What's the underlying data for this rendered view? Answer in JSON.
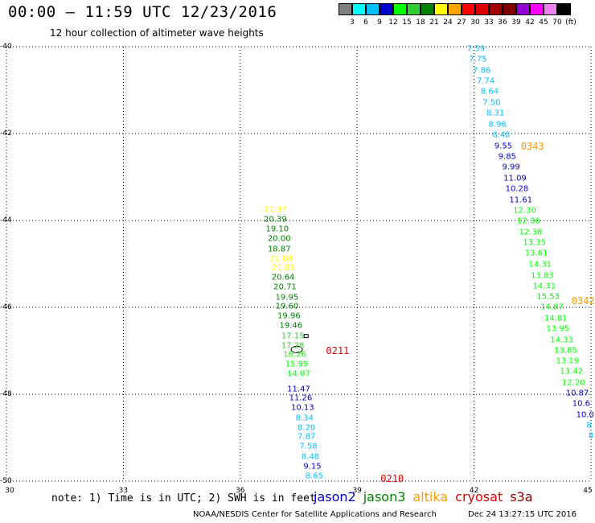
{
  "header": {
    "title": "00:00 – 11:59 UTC 12/23/2016",
    "subtitle": "12 hour collection of altimeter wave heights"
  },
  "legend": {
    "swatches": [
      "#808080",
      "#00ffff",
      "#00bfff",
      "#0000cd",
      "#00ff00",
      "#32cd32",
      "#008000",
      "#ffff00",
      "#ffa500",
      "#ff0000",
      "#dc0000",
      "#a00000",
      "#800000",
      "#9400d3",
      "#ff00ff",
      "#ee82ee",
      "#000000"
    ],
    "labels": [
      "3",
      "6",
      "9",
      "12",
      "15",
      "18",
      "21",
      "24",
      "27",
      "30",
      "33",
      "36",
      "39",
      "42",
      "45",
      "70",
      "(ft)"
    ]
  },
  "axes": {
    "y_labels": [
      "-40",
      "-42",
      "-44",
      "-46",
      "-48",
      "-50"
    ],
    "x_labels": [
      "30",
      "33",
      "36",
      "39",
      "42",
      "45"
    ]
  },
  "chart_data": {
    "type": "scatter",
    "x_range": [
      30,
      45
    ],
    "y_range": [
      -50,
      -40
    ],
    "grid": "dotted",
    "passes": [
      {
        "label": "0211",
        "satellite": "cryosat",
        "color": "#dd0000",
        "lon": 38.2,
        "lat": -47.0
      },
      {
        "label": "0210",
        "satellite": "cryosat",
        "color": "#dd0000",
        "lon": 39.6,
        "lat": -49.95
      },
      {
        "label": "0343",
        "satellite": "altika",
        "color": "#ff9900",
        "lon": 43.2,
        "lat": -42.3
      },
      {
        "label": "0342",
        "satellite": "altika",
        "color": "#ff9900",
        "lon": 44.5,
        "lat": -45.85
      }
    ],
    "tracks": [
      {
        "name": "track-west",
        "points": [
          {
            "lon": 36.9,
            "lat": -43.76,
            "v": "21.37",
            "c": "#ffff00"
          },
          {
            "lon": 36.9,
            "lat": -43.99,
            "v": "20.39",
            "c": "#008000"
          },
          {
            "lon": 36.95,
            "lat": -44.21,
            "v": "19.10",
            "c": "#008000"
          },
          {
            "lon": 37.0,
            "lat": -44.43,
            "v": "20.00",
            "c": "#008000"
          },
          {
            "lon": 37.0,
            "lat": -44.66,
            "v": "18.87",
            "c": "#008000"
          },
          {
            "lon": 37.05,
            "lat": -44.88,
            "v": "21.88",
            "c": "#ffff00"
          },
          {
            "lon": 37.1,
            "lat": -45.1,
            "v": "21.85",
            "c": "#ffff00"
          },
          {
            "lon": 37.1,
            "lat": -45.32,
            "v": "20.64",
            "c": "#008000"
          },
          {
            "lon": 37.15,
            "lat": -45.54,
            "v": "20.71",
            "c": "#008000"
          },
          {
            "lon": 37.2,
            "lat": -45.77,
            "v": "19.95",
            "c": "#008000"
          },
          {
            "lon": 37.2,
            "lat": -45.99,
            "v": "19.60",
            "c": "#008000"
          },
          {
            "lon": 37.25,
            "lat": -46.21,
            "v": "19.96",
            "c": "#008000"
          },
          {
            "lon": 37.3,
            "lat": -46.43,
            "v": "19.46",
            "c": "#008000"
          },
          {
            "lon": 37.35,
            "lat": -46.66,
            "v": "17.15",
            "c": "#32cd32"
          },
          {
            "lon": 37.35,
            "lat": -46.88,
            "v": "17.28",
            "c": "#32cd32"
          },
          {
            "lon": 37.4,
            "lat": -47.1,
            "v": "16.26",
            "c": "#00ff00"
          },
          {
            "lon": 37.45,
            "lat": -47.32,
            "v": "15.99",
            "c": "#00ff00"
          },
          {
            "lon": 37.5,
            "lat": -47.54,
            "v": "14.07",
            "c": "#00ff00"
          },
          {
            "lon": 37.5,
            "lat": -47.88,
            "v": "11.47",
            "c": "#0000cd"
          },
          {
            "lon": 37.55,
            "lat": -48.1,
            "v": "11.26",
            "c": "#0000cd"
          },
          {
            "lon": 37.6,
            "lat": -48.32,
            "v": "10.13",
            "c": "#0000cd"
          },
          {
            "lon": 37.65,
            "lat": -48.55,
            "v": "8.34",
            "c": "#00bfff"
          },
          {
            "lon": 37.7,
            "lat": -48.77,
            "v": "8.20",
            "c": "#00bfff"
          },
          {
            "lon": 37.7,
            "lat": -48.99,
            "v": "7.87",
            "c": "#00bfff"
          },
          {
            "lon": 37.75,
            "lat": -49.21,
            "v": "7.58",
            "c": "#00bfff"
          },
          {
            "lon": 37.8,
            "lat": -49.44,
            "v": "8.48",
            "c": "#00bfff"
          },
          {
            "lon": 37.85,
            "lat": -49.66,
            "v": "9.15",
            "c": "#0000cd"
          },
          {
            "lon": 37.9,
            "lat": -49.88,
            "v": "8.65",
            "c": "#00bfff"
          }
        ]
      },
      {
        "name": "track-east",
        "points": [
          {
            "lon": 42.05,
            "lat": -40.05,
            "v": "7.59",
            "c": "#00bfff"
          },
          {
            "lon": 42.1,
            "lat": -40.29,
            "v": "7.75",
            "c": "#00bfff"
          },
          {
            "lon": 42.2,
            "lat": -40.55,
            "v": "7.86",
            "c": "#00bfff"
          },
          {
            "lon": 42.3,
            "lat": -40.8,
            "v": "7.74",
            "c": "#00bfff"
          },
          {
            "lon": 42.4,
            "lat": -41.04,
            "v": "8.64",
            "c": "#00bfff"
          },
          {
            "lon": 42.45,
            "lat": -41.29,
            "v": "7.50",
            "c": "#00bfff"
          },
          {
            "lon": 42.55,
            "lat": -41.54,
            "v": "8.31",
            "c": "#00bfff"
          },
          {
            "lon": 42.6,
            "lat": -41.79,
            "v": "8.96",
            "c": "#00bfff"
          },
          {
            "lon": 42.7,
            "lat": -42.03,
            "v": "8.48",
            "c": "#00bfff"
          },
          {
            "lon": 42.75,
            "lat": -42.29,
            "v": "9.55",
            "c": "#0000cd"
          },
          {
            "lon": 42.85,
            "lat": -42.54,
            "v": "9.85",
            "c": "#0000cd"
          },
          {
            "lon": 42.95,
            "lat": -42.78,
            "v": "9.99",
            "c": "#0000cd"
          },
          {
            "lon": 43.05,
            "lat": -43.03,
            "v": "11.09",
            "c": "#0000cd"
          },
          {
            "lon": 43.1,
            "lat": -43.28,
            "v": "10.28",
            "c": "#0000cd"
          },
          {
            "lon": 43.2,
            "lat": -43.53,
            "v": "11.61",
            "c": "#0000cd"
          },
          {
            "lon": 43.3,
            "lat": -43.77,
            "v": "12.30",
            "c": "#00ff00"
          },
          {
            "lon": 43.4,
            "lat": -44.02,
            "v": "12.36",
            "c": "#00ff00"
          },
          {
            "lon": 43.45,
            "lat": -44.27,
            "v": "12.38",
            "c": "#00ff00"
          },
          {
            "lon": 43.55,
            "lat": -44.52,
            "v": "13.35",
            "c": "#00ff00"
          },
          {
            "lon": 43.6,
            "lat": -44.76,
            "v": "13.61",
            "c": "#00ff00"
          },
          {
            "lon": 43.7,
            "lat": -45.01,
            "v": "14.31",
            "c": "#00ff00"
          },
          {
            "lon": 43.75,
            "lat": -45.27,
            "v": "13.83",
            "c": "#00ff00"
          },
          {
            "lon": 43.8,
            "lat": -45.51,
            "v": "14.31",
            "c": "#00ff00"
          },
          {
            "lon": 43.9,
            "lat": -45.76,
            "v": "15.53",
            "c": "#32cd32"
          },
          {
            "lon": 44.0,
            "lat": -46.0,
            "v": "14.87",
            "c": "#00ff00"
          },
          {
            "lon": 44.1,
            "lat": -46.25,
            "v": "14.81",
            "c": "#00ff00"
          },
          {
            "lon": 44.15,
            "lat": -46.5,
            "v": "13.95",
            "c": "#00ff00"
          },
          {
            "lon": 44.25,
            "lat": -46.75,
            "v": "14.33",
            "c": "#00ff00"
          },
          {
            "lon": 44.35,
            "lat": -47.0,
            "v": "13.85",
            "c": "#00ff00"
          },
          {
            "lon": 44.4,
            "lat": -47.24,
            "v": "13.19",
            "c": "#00ff00"
          },
          {
            "lon": 44.5,
            "lat": -47.49,
            "v": "13.42",
            "c": "#00ff00"
          },
          {
            "lon": 44.55,
            "lat": -47.74,
            "v": "12.20",
            "c": "#00ff00"
          },
          {
            "lon": 44.65,
            "lat": -47.98,
            "v": "10.87",
            "c": "#0000cd"
          },
          {
            "lon": 44.75,
            "lat": -48.23,
            "v": "10.6",
            "c": "#0000cd"
          },
          {
            "lon": 44.85,
            "lat": -48.48,
            "v": "10.0",
            "c": "#0000cd"
          },
          {
            "lon": 44.95,
            "lat": -48.72,
            "v": "8",
            "c": "#00bfff"
          },
          {
            "lon": 45.0,
            "lat": -48.97,
            "v": "8",
            "c": "#00bfff"
          }
        ]
      }
    ]
  },
  "footer": {
    "note": "note: 1) Time is in UTC; 2) SWH is in feet",
    "satellites": [
      {
        "name": "jason2",
        "color": "#0000cd"
      },
      {
        "name": "jason3",
        "color": "#008000"
      },
      {
        "name": "altika",
        "color": "#ff9900"
      },
      {
        "name": "cryosat",
        "color": "#dd0000"
      },
      {
        "name": "s3a",
        "color": "#880000"
      }
    ],
    "credit": "NOAA/NESDIS Center for Satellite Applications and Research",
    "timestamp": "Dec 24 13:27:15 UTC 2016"
  }
}
